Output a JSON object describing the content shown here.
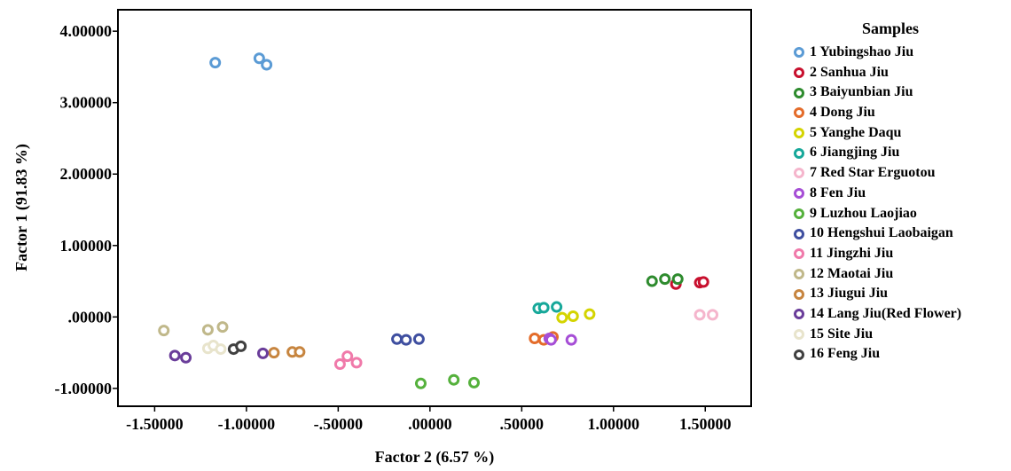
{
  "chart_data": {
    "type": "scatter",
    "xlabel": "Factor 2 (6.57 %)",
    "ylabel": "Factor 1 (91.83 %)",
    "xlim": [
      -1.7,
      1.75
    ],
    "ylim": [
      -1.25,
      4.3
    ],
    "x_ticks": [
      -1.5,
      -1.0,
      -0.5,
      0.0,
      0.5,
      1.0,
      1.5
    ],
    "x_tick_labels": [
      "-1.50000",
      "-1.00000",
      "-.50000",
      ".00000",
      ".50000",
      "1.00000",
      "1.50000"
    ],
    "y_ticks": [
      -1.0,
      0.0,
      1.0,
      2.0,
      3.0,
      4.0
    ],
    "y_tick_labels": [
      "-1.00000",
      ".00000",
      "1.00000",
      "2.00000",
      "3.00000",
      "4.00000"
    ],
    "grid": false,
    "legend_title": "Samples",
    "legend_position": "right",
    "series": [
      {
        "name": "1 Yubingshao Jiu",
        "color": "#5b9bd5",
        "points": [
          [
            -1.17,
            3.56
          ],
          [
            -0.93,
            3.62
          ],
          [
            -0.89,
            3.53
          ]
        ]
      },
      {
        "name": "2 Sanhua Jiu",
        "color": "#c8102e",
        "points": [
          [
            1.34,
            0.46
          ],
          [
            1.47,
            0.48
          ],
          [
            1.49,
            0.49
          ]
        ]
      },
      {
        "name": "3 Baiyunbian Jiu",
        "color": "#2e8b2e",
        "points": [
          [
            1.21,
            0.5
          ],
          [
            1.28,
            0.53
          ],
          [
            1.35,
            0.53
          ]
        ]
      },
      {
        "name": "4 Dong Jiu",
        "color": "#e46c2a",
        "points": [
          [
            0.57,
            -0.3
          ],
          [
            0.62,
            -0.32
          ],
          [
            0.67,
            -0.28
          ]
        ]
      },
      {
        "name": "5 Yanghe Daqu",
        "color": "#d4d400",
        "points": [
          [
            0.72,
            -0.01
          ],
          [
            0.78,
            0.01
          ],
          [
            0.87,
            0.04
          ]
        ]
      },
      {
        "name": "6 Jiangjing Jiu",
        "color": "#17a89a",
        "points": [
          [
            0.59,
            0.12
          ],
          [
            0.62,
            0.13
          ],
          [
            0.69,
            0.14
          ]
        ]
      },
      {
        "name": "7 Red Star Erguotou",
        "color": "#f5b5cc",
        "points": [
          [
            1.47,
            0.03
          ],
          [
            1.54,
            0.03
          ]
        ]
      },
      {
        "name": "8 Fen Jiu",
        "color": "#a64ed6",
        "points": [
          [
            0.65,
            -0.3
          ],
          [
            0.66,
            -0.32
          ],
          [
            0.77,
            -0.32
          ]
        ]
      },
      {
        "name": "9 Luzhou Laojiao",
        "color": "#55b13c",
        "points": [
          [
            -0.05,
            -0.93
          ],
          [
            0.13,
            -0.88
          ],
          [
            0.24,
            -0.92
          ]
        ]
      },
      {
        "name": "10 Hengshui Laobaigan",
        "color": "#3f4fa0",
        "points": [
          [
            -0.18,
            -0.31
          ],
          [
            -0.13,
            -0.32
          ],
          [
            -0.06,
            -0.31
          ]
        ]
      },
      {
        "name": "11 Jingzhi Jiu",
        "color": "#f07aaa",
        "points": [
          [
            -0.49,
            -0.66
          ],
          [
            -0.45,
            -0.55
          ],
          [
            -0.4,
            -0.64
          ]
        ]
      },
      {
        "name": "12 Maotai Jiu",
        "color": "#c0b88a",
        "points": [
          [
            -1.45,
            -0.19
          ],
          [
            -1.21,
            -0.18
          ],
          [
            -1.13,
            -0.14
          ]
        ]
      },
      {
        "name": "13 Jiugui Jiu",
        "color": "#c7853f",
        "points": [
          [
            -0.85,
            -0.5
          ],
          [
            -0.75,
            -0.49
          ],
          [
            -0.71,
            -0.49
          ]
        ]
      },
      {
        "name": "14 Lang Jiu(Red Flower)",
        "color": "#6a3d9a",
        "points": [
          [
            -1.39,
            -0.54
          ],
          [
            -1.33,
            -0.57
          ],
          [
            -0.91,
            -0.51
          ]
        ]
      },
      {
        "name": "15 Site Jiu",
        "color": "#e8e4cc",
        "points": [
          [
            -1.21,
            -0.44
          ],
          [
            -1.18,
            -0.4
          ],
          [
            -1.14,
            -0.45
          ]
        ]
      },
      {
        "name": "16 Feng Jiu",
        "color": "#404040",
        "points": [
          [
            -1.07,
            -0.45
          ],
          [
            -1.03,
            -0.41
          ]
        ]
      }
    ]
  }
}
